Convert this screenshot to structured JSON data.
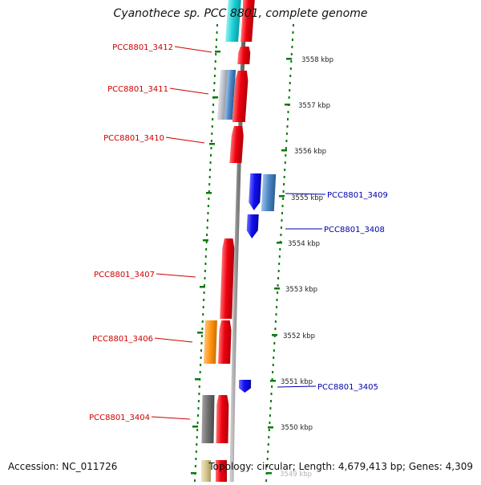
{
  "header": {
    "title": "Cyanothece sp. PCC 8801, complete genome"
  },
  "footer": {
    "accession": "Accession: NC_011726",
    "topology": "Topology: circular; Length: 4,679,413 bp; Genes: 4,309"
  },
  "scale_ticks": [
    {
      "label": "3558 kbp"
    },
    {
      "label": "3557 kbp"
    },
    {
      "label": "3556 kbp"
    },
    {
      "label": "3555 kbp"
    },
    {
      "label": "3554 kbp"
    },
    {
      "label": "3553 kbp"
    },
    {
      "label": "3552 kbp"
    },
    {
      "label": "3551 kbp"
    },
    {
      "label": "3550 kbp"
    },
    {
      "label": "3549 kbp"
    }
  ],
  "genes_forward": [
    {
      "label": "PCC8801_3412"
    },
    {
      "label": "PCC8801_3411"
    },
    {
      "label": "PCC8801_3410"
    },
    {
      "label": "PCC8801_3407"
    },
    {
      "label": "PCC8801_3406"
    },
    {
      "label": "PCC8801_3404"
    }
  ],
  "genes_reverse": [
    {
      "label": "PCC8801_3409"
    },
    {
      "label": "PCC8801_3408"
    },
    {
      "label": "PCC8801_3405"
    }
  ],
  "colors": {
    "forward_gene": "#e8000b",
    "reverse_gene": "#1010ee",
    "forward_label": "#cc0000",
    "reverse_label": "#0000aa",
    "ruler_dots": "#0a7a0a",
    "backbone": "#808080",
    "cog_cyan": "#1ad0d6",
    "cog_orange": "#ff9411",
    "cog_gray": "#6e6e6e",
    "cog_steel": "#4b86c4",
    "cog_silver": "#b4b8c2",
    "cog_tan": "#d6c88e"
  }
}
